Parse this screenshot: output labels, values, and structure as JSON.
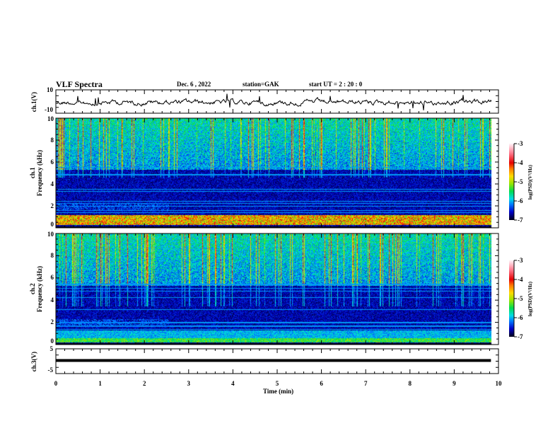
{
  "header": {
    "title": "VLF Spectra",
    "date": "Dec. 6  , 2022",
    "station": "station=GAK",
    "start_ut": "start  UT =   2 : 20 : 0"
  },
  "chart_data": [
    {
      "type": "line",
      "name": "ch1-waveform",
      "ylabel": "ch.1(V)",
      "ylim": [
        -10,
        10
      ],
      "ytick_labels": [
        "10",
        "-10"
      ],
      "xlim": [
        0,
        10
      ],
      "description_values": {
        "mean_level_V": 0,
        "noise_amplitude_V": 2
      }
    },
    {
      "type": "heatmap",
      "name": "ch1-spectrogram",
      "ylabel": "ch.1\nFrequency (kHz)",
      "ylim": [
        0,
        10
      ],
      "ytick_labels": [
        "0",
        "2",
        "4",
        "6",
        "8",
        "10"
      ],
      "xlim": [
        0,
        10
      ],
      "data_end_min": 9.83,
      "colorbar": {
        "label": "log(PSD)(V²/Hz)",
        "range": [
          -7,
          -3
        ],
        "tick_labels": [
          "-3",
          "-4",
          "-5",
          "-6",
          "-7"
        ]
      }
    },
    {
      "type": "heatmap",
      "name": "ch2-spectrogram",
      "ylabel": "ch.2\nFrequency (kHz)",
      "ylim": [
        0,
        10
      ],
      "ytick_labels": [
        "0",
        "2",
        "4",
        "6",
        "8",
        "10"
      ],
      "xlim": [
        0,
        10
      ],
      "data_end_min": 9.83,
      "colorbar": {
        "label": "log(PSD)(V²/Hz)",
        "range": [
          -7,
          -3
        ],
        "tick_labels": [
          "-3",
          "-4",
          "-5",
          "-6",
          "-7"
        ]
      }
    },
    {
      "type": "line",
      "name": "ch3-waveform",
      "ylabel": "ch.3(V)",
      "ylim": [
        -5,
        5
      ],
      "ytick_labels": [
        "5",
        "-5"
      ],
      "constant_value_V": 0
    }
  ],
  "xaxis": {
    "label": "Time  (min)",
    "tick_labels": [
      "0",
      "1",
      "2",
      "3",
      "4",
      "5",
      "6",
      "7",
      "8",
      "9",
      "10"
    ]
  }
}
